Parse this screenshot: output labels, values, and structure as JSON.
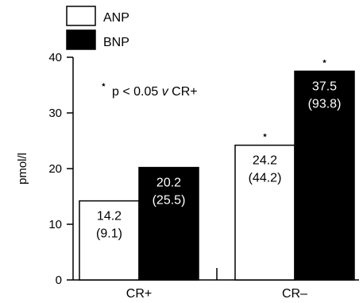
{
  "chart_data": {
    "type": "bar",
    "categories": [
      "CR+",
      "CR–"
    ],
    "series": [
      {
        "name": "ANP",
        "values": [
          14.2,
          24.2
        ],
        "secondary": [
          "(9.1)",
          "(44.2)"
        ],
        "color": "#ffffff"
      },
      {
        "name": "BNP",
        "values": [
          20.2,
          37.5
        ],
        "secondary": [
          "(25.5)",
          "(93.8)"
        ],
        "color": "#000000"
      }
    ],
    "ylabel": "pmol/l",
    "ylim": [
      0,
      40
    ],
    "yticks": [
      0,
      10,
      20,
      30,
      40
    ],
    "note_star": "⋆",
    "note_prefix": "p < 0.05 ",
    "note_italic": "v",
    "note_suffix": " CR+",
    "significance_markers": [
      {
        "category_index": 1,
        "series_index": 0,
        "symbol": "⋆"
      },
      {
        "category_index": 1,
        "series_index": 1,
        "symbol": "⋆"
      }
    ],
    "legend_position": "top-left",
    "grid": false
  }
}
